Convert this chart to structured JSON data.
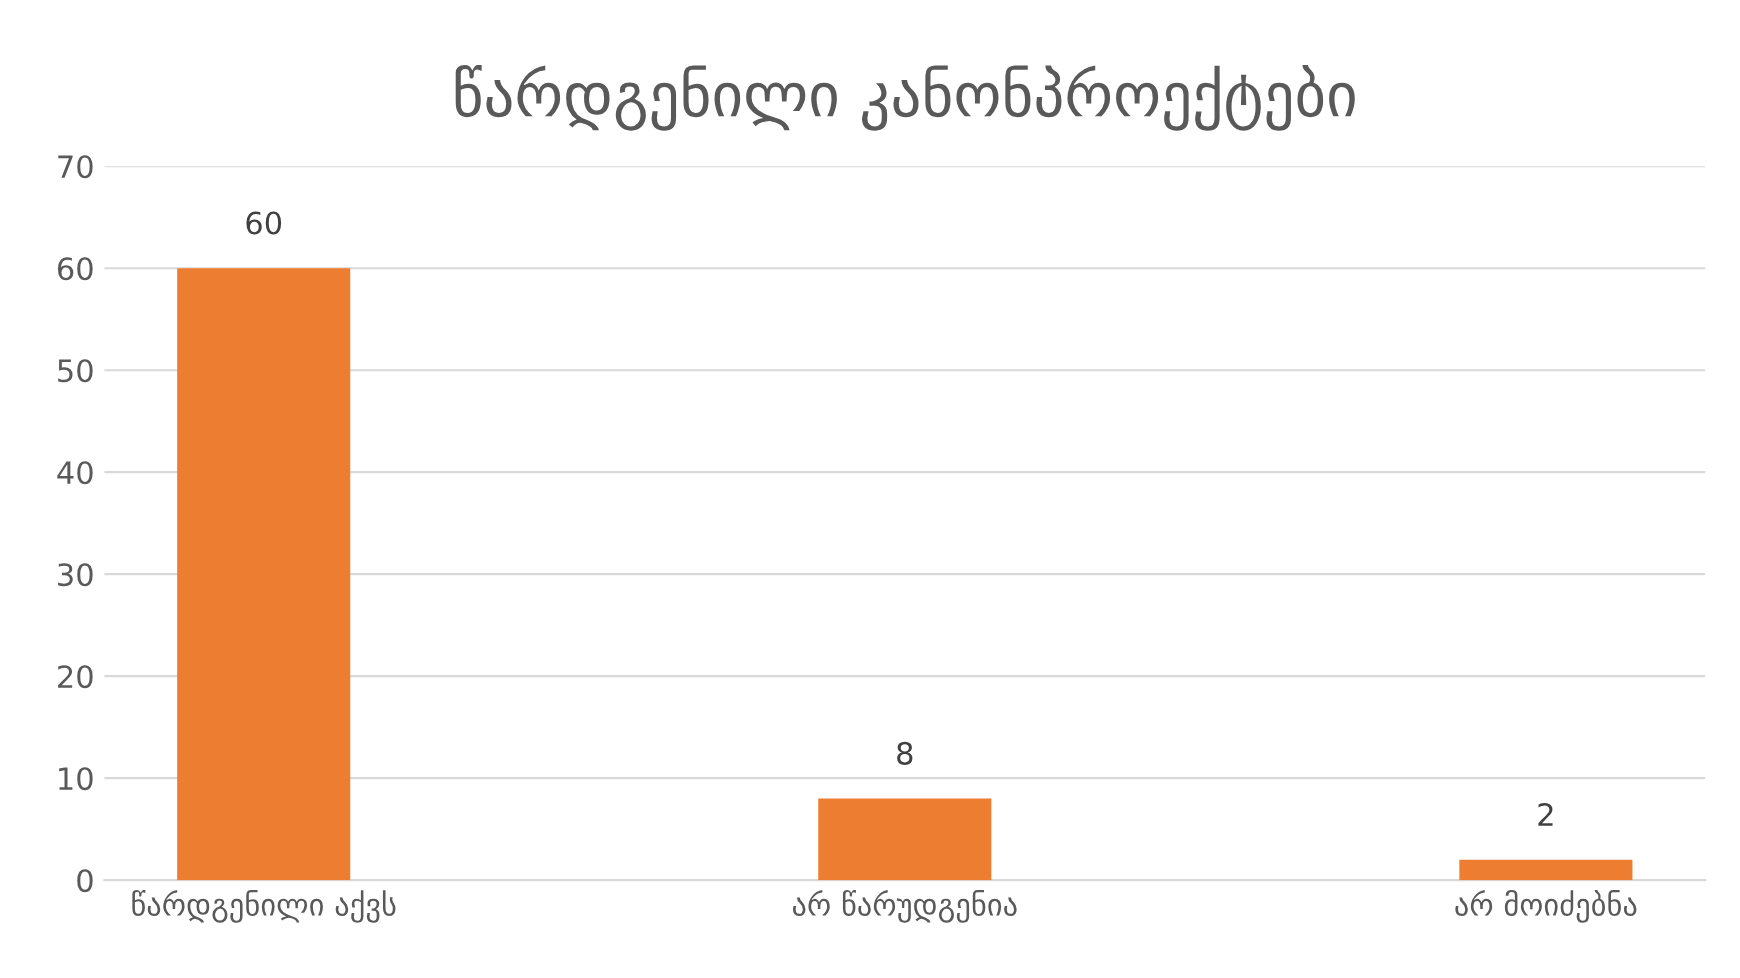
{
  "chart_data": {
    "type": "bar",
    "title": "წარდგენილი კანონპროექტები",
    "categories": [
      "წარდგენილი აქვს",
      "არ წარუდგენია",
      "არ მოიძებნა"
    ],
    "values": [
      60,
      8,
      2
    ],
    "color": "#ed7d31",
    "ylim": [
      0,
      70
    ],
    "yticks": [
      0,
      10,
      20,
      30,
      40,
      50,
      60,
      70
    ],
    "grid": "y",
    "data_labels": true
  }
}
